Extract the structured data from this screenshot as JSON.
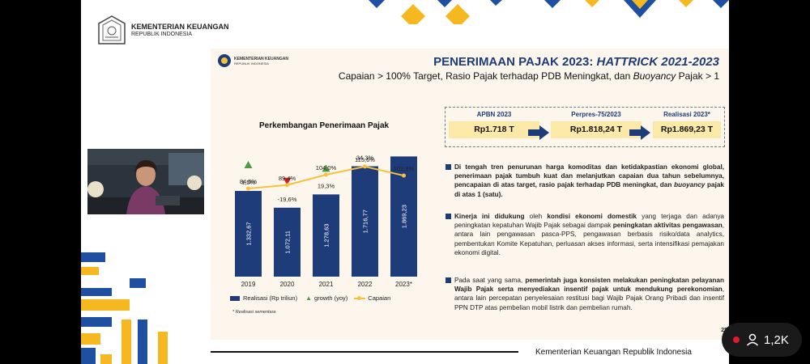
{
  "header": {
    "org_name": "KEMENTERIAN KEUANGAN",
    "org_sub": "REPUBLIK INDONESIA"
  },
  "slide": {
    "logo_name": "KEMENTERIAN KEUANGAN",
    "logo_sub": "REPUBLIK INDONESIA",
    "title_prefix": "PENERIMAAN PAJAK 2023: ",
    "title_em": "HATTRICK 2021-2023",
    "subtitle_pre": "Capaian > 100% Target, Rasio Pajak terhadap PDB Meningkat, dan ",
    "subtitle_em": "Buoyancy",
    "subtitle_post": " Pajak > 1",
    "chart_title": "Perkembangan Penerimaan Pajak",
    "legend": {
      "bar": "Realisasi (Rp triliun)",
      "growth": "growth (yoy)",
      "line": "Capaian"
    },
    "footnote": "* Realisasi sementara",
    "stages": [
      {
        "label": "APBN 2023",
        "value": "Rp1.718 T"
      },
      {
        "label": "Perpres-75/2023",
        "value": "Rp1.818,24 T"
      },
      {
        "label": "Realisasi 2023*",
        "value": "Rp1.869,23 T"
      }
    ],
    "bullet1": {
      "b1": "Di tengah tren penurunan harga komoditas dan ketidakpastian ekonomi global, penerimaan pajak tumbuh kuat dan melanjutkan capaian dua tahun sebelumnya, pencapaian di atas target, rasio pajak terhadap PDB meningkat, dan ",
      "em": "buoyancy",
      "b2": " pajak di atas 1 (satu)."
    },
    "bullet2": {
      "b1": "Kinerja ini didukung",
      "t1": " oleh ",
      "b2": "kondisi ekonomi domestik",
      "t2": " yang terjaga dan adanya peningkatan kepatuhan Wajib Pajak sebagai dampak ",
      "b3": "peningkatan aktivitas pengawasan",
      "t3": ", antara lain pengawasan pasca-PPS, pengawasan berbasis risiko/data analytics, pembentukan Komite Kepatuhan, perluasan akses informasi, serta intensifikasi pemajakan ekonomi digital."
    },
    "bullet3": {
      "t1": "Pada saat yang sama, ",
      "b1": "pemerintah juga konsisten melakukan peningkatan pelayanan Wajib Pajak serta menyediakan insentif pajak untuk mendukung perekonomian",
      "t2": ", antara lain percepatan penyelesaian restitusi bagi Wajib Pajak Orang Pribadi dan insentif PPN DTP atas pembelian mobil listrik dan pembelian rumah."
    },
    "page_number": "25"
  },
  "footer": {
    "text": "Kementerian Keuangan Republik Indonesia"
  },
  "live": {
    "viewer_count": "1,2K",
    "icons": [
      "live-dot-icon",
      "person-icon"
    ]
  },
  "colors": {
    "navy": "#1f3c7a",
    "gold": "#f6c23e",
    "green": "#4f9a45",
    "red": "#e02020"
  },
  "chart_data": {
    "type": "bar",
    "categories": [
      "2019",
      "2020",
      "2021",
      "2022",
      "2023*"
    ],
    "series": [
      {
        "name": "Realisasi (Rp triliun)",
        "values": [
          1332.67,
          1072.11,
          1278.63,
          1716.77,
          1869.23
        ],
        "labels": [
          "1.332,67",
          "1.072,11",
          "1.278,63",
          "1.716,77",
          "1.869,23"
        ]
      },
      {
        "name": "growth (yoy)",
        "values": [
          1.5,
          -19.6,
          19.3,
          34.3,
          8.9
        ],
        "labels": [
          "1,5%",
          "-19,6%",
          "19,3%",
          "34,3%",
          "8,9%"
        ]
      },
      {
        "name": "Capaian",
        "values": [
          84.5,
          89.4,
          104.0,
          115.6,
          102.8
        ],
        "labels": [
          "84,5%",
          "89,4%",
          "104,0%",
          "115,6%",
          "102,8%"
        ]
      }
    ],
    "ylim": [
      0,
      2000
    ],
    "legend_position": "bottom"
  }
}
